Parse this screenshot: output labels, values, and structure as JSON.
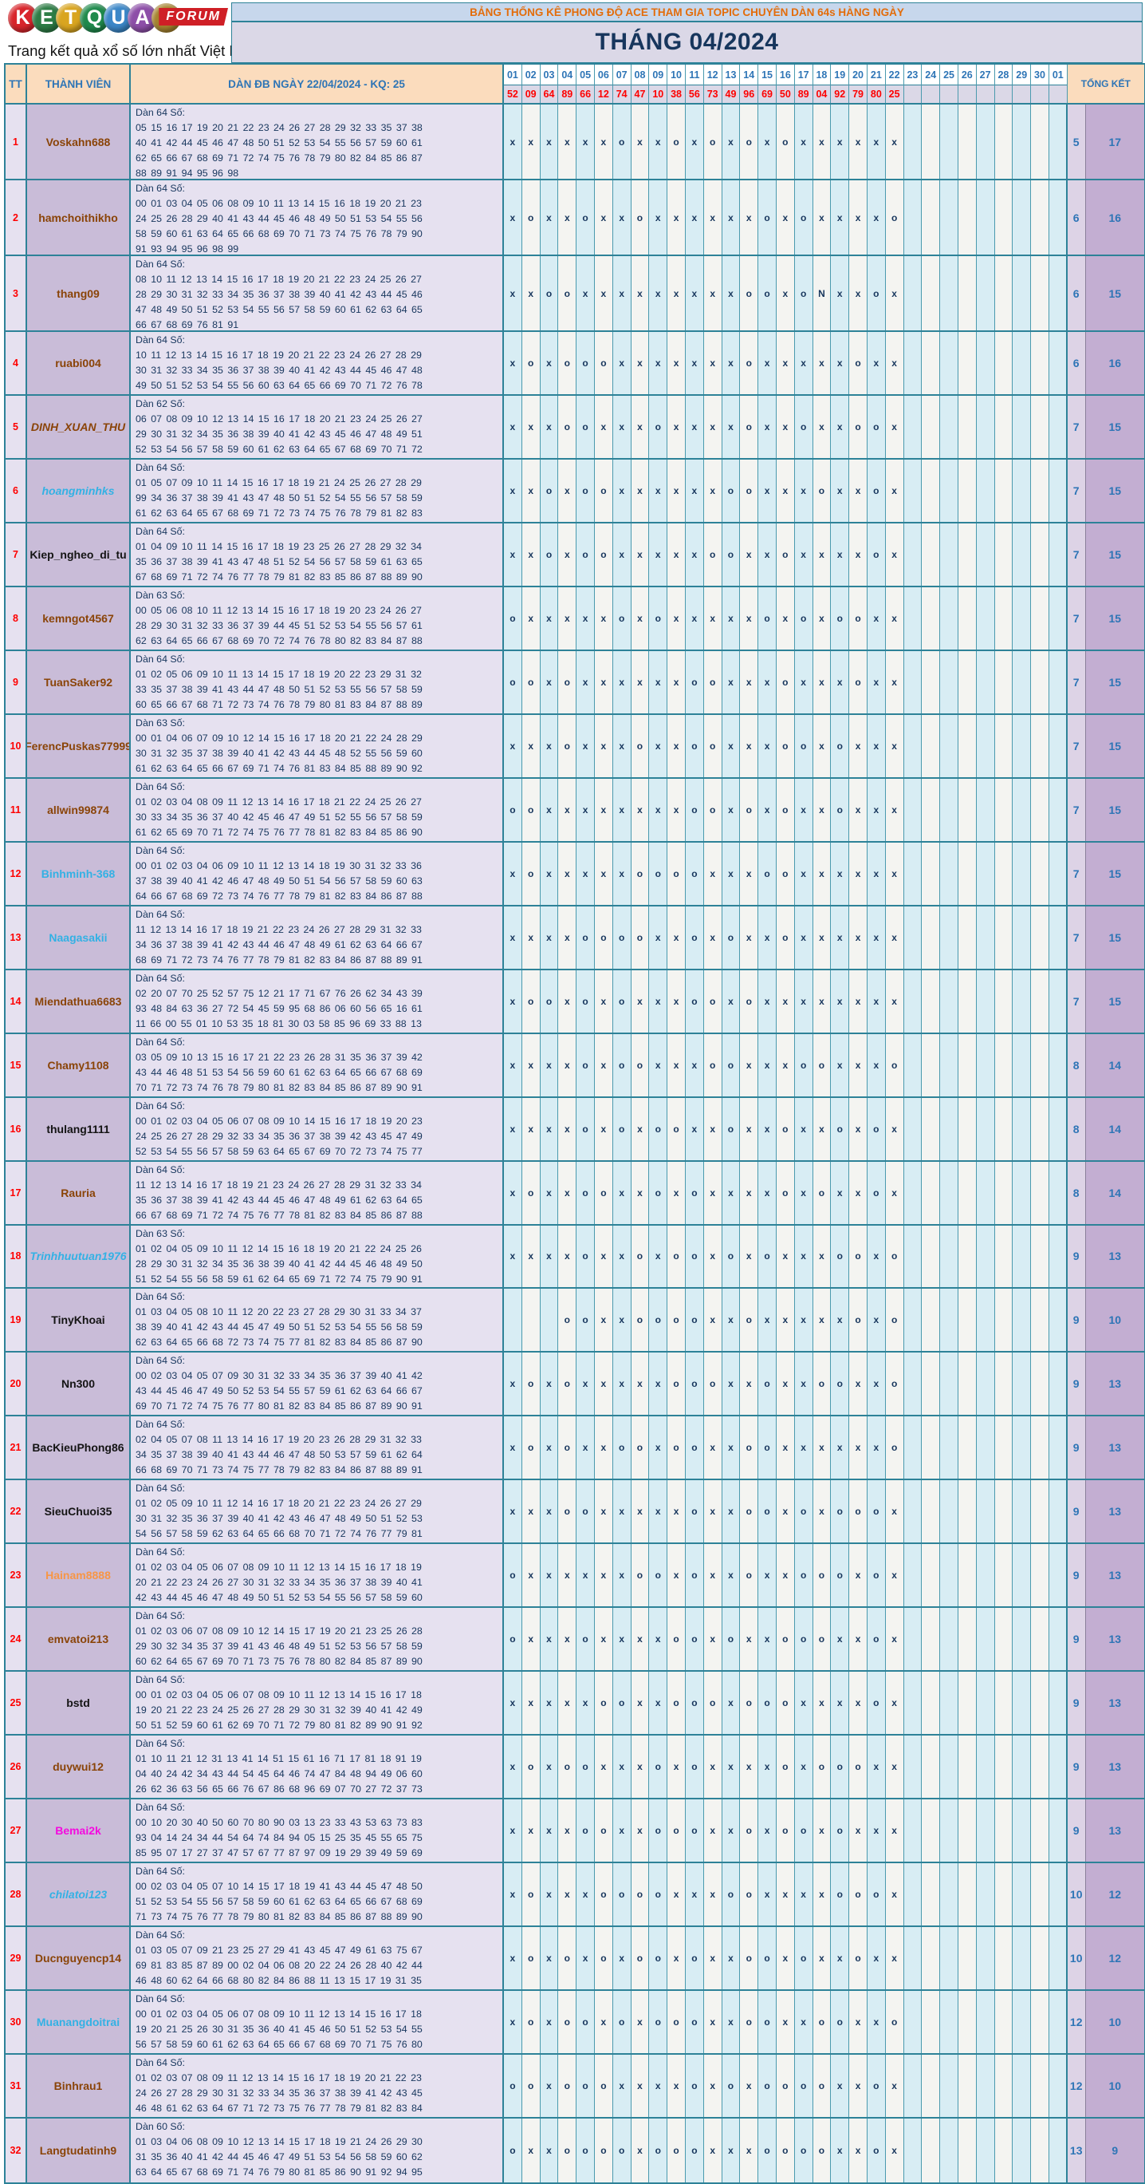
{
  "logo": {
    "letters": [
      "K",
      "E",
      "T",
      "Q",
      "U",
      "A",
      "2"
    ],
    "letter_colors": [
      "#d8252b",
      "#2e7d46",
      "#d9a520",
      "#1f8a4c",
      "#3b87c8",
      "#8d4fa8",
      "#a5822e"
    ],
    "forum_badge": "FORUM",
    "tagline": "Trang kết quả xổ số lớn nhất Việt Nam"
  },
  "header": {
    "title": "BẢNG THỐNG KÊ PHONG ĐỘ ACE THAM GIA TOPIC CHUYÊN DÀN 64s HÀNG NGÀY",
    "month": "THÁNG 04/2024"
  },
  "table": {
    "col_tt": "TT",
    "col_member": "THÀNH VIÊN",
    "col_dan": "DÀN ĐB NGÀY 22/04/2024 - KQ: 25",
    "col_total": "TỔNG KẾT",
    "days": [
      "01",
      "02",
      "03",
      "04",
      "05",
      "06",
      "07",
      "08",
      "09",
      "10",
      "11",
      "12",
      "13",
      "14",
      "15",
      "16",
      "17",
      "18",
      "19",
      "20",
      "21",
      "22",
      "23",
      "24",
      "25",
      "26",
      "27",
      "28",
      "29",
      "30",
      "01"
    ],
    "results": [
      "52",
      "09",
      "64",
      "89",
      "66",
      "12",
      "74",
      "47",
      "10",
      "38",
      "56",
      "73",
      "49",
      "96",
      "69",
      "50",
      "89",
      "04",
      "92",
      "79",
      "80",
      "25",
      "",
      "",
      "",
      "",
      "",
      "",
      "",
      "",
      ""
    ],
    "rows": [
      {
        "tt": "1",
        "name": "Voskahn688",
        "color": "brown",
        "italic": false,
        "dan": "Dàn 64 Số:",
        "nums": "05 15 16 17 19 20 21 22 23 24 26 27 28 29 32 33 35 37 38 40 41 42 44 45 46 47 48 50 51 52 53 54 55 56 57 59 60 61 62 65 66 67 68 69 71 72 74 75 76 78 79 80 82 84 85 86 87 88 89 91 94 95 96 98",
        "marks": "xxxxxxoxxoxoxoxoxxxxxx",
        "total_o": "5",
        "total_x": "17"
      },
      {
        "tt": "2",
        "name": "hamchoithikho",
        "color": "brown",
        "italic": false,
        "dan": "Dàn 64 Số:",
        "nums": "00 01 03 04 05 06 08 09 10 11 13 14 15 16 18 19 20 21 23 24 25 26 28 29 40 41 43 44 45 46 48 49 50 51 53 54 55 56 58 59 60 61 63 64 65 66 68 69 70 71 73 74 75 76 78 79 90 91 93 94 95 96 98 99",
        "marks": "xoxxoxxoxxxxxxoxoxxxxo",
        "total_o": "6",
        "total_x": "16"
      },
      {
        "tt": "3",
        "name": "thang09",
        "color": "brown",
        "italic": false,
        "dan": "Dàn 64 Số:",
        "nums": "08 10 11 12 13 14 15 16 17 18 19 20 21 22 23 24 25 26 27 28 29 30 31 32 33 34 35 36 37 38 39 40 41 42 43 44 45 46 47 48 49 50 51 52 53 54 55 56 57 58 59 60 61 62 63 64 65 66 67 68 69 76 81 91",
        "marks": "xxooxxxxxxxxxooxoNxxox",
        "total_o": "6",
        "total_x": "15"
      },
      {
        "tt": "4",
        "name": "ruabi004",
        "color": "brown",
        "italic": false,
        "dan": "Dàn 64 Số:",
        "nums": "10 11 12 13 14 15 16 17 18 19 20 21 22 23 24 26 27 28 29 30 31 32 33 34 35 36 37 38 39 40 41 42 43 44 45 46 47 48 49 50 51 52 53 54 55 56 60 63 64 65 66 69 70 71 72 76 78",
        "marks": "xoxoooxxxxxxxoxxxxxoxx",
        "total_o": "6",
        "total_x": "16"
      },
      {
        "tt": "5",
        "name": "DINH_XUAN_THU",
        "color": "brown",
        "italic": true,
        "dan": "Dàn 62 Số:",
        "nums": "06 07 08 09 10 12 13 14 15 16 17 18 20 21 23 24 25 26 27 29 30 31 32 34 35 36 38 39 40 41 42 43 45 46 47 48 49 51 52 53 54 56 57 58 59 60 61 62 63 64 65 67 68 69 70 71 72",
        "marks": "xxxooxxxoxxxxoxxoxxoox",
        "total_o": "7",
        "total_x": "15"
      },
      {
        "tt": "6",
        "name": "hoangminhks",
        "color": "blue",
        "italic": true,
        "dan": "Dàn 64 Số:",
        "nums": "01 05 07 09 10 11 14 15 16 17 18 19 21 24 25 26 27 28 29 99 34 36 37 38 39 41 43 47 48 50 51 52 54 55 56 57 58 59 61 62 63 64 65 67 68 69 71 72 73 74 75 76 78 79 81 82 83",
        "marks": "xxoxooxxxxxxooxxxoxxox",
        "total_o": "7",
        "total_x": "15"
      },
      {
        "tt": "7",
        "name": "Kiep_ngheo_di_tu",
        "color": "black",
        "italic": false,
        "dan": "Dàn 64 Số:",
        "nums": "01 04 09 10 11 14 15 16 17 18 19 23 25 26 27 28 29 32 34 35 36 37 38 39 41 43 47 48 51 52 54 56 57 58 59 61 63 65 67 68 69 71 72 74 76 77 78 79 81 82 83 85 86 87 88 89 90",
        "marks": "xxoxooxxxxxooxxoxxxxox",
        "total_o": "7",
        "total_x": "15"
      },
      {
        "tt": "8",
        "name": "kemngot4567",
        "color": "brown",
        "italic": false,
        "dan": "Dàn 63 Số:",
        "nums": "00 05 06 08 10 11 12 13 14 15 16 17 18 19 20 23 24 26 27 28 29 30 31 32 33 36 37 39 44 45 51 52 53 54 55 56 57 61 62 63 64 65 66 67 68 69 70 72 74 76 78 80 82 83 84 87 88",
        "marks": "oxxxxxoxoxxxxxoxoxooxx",
        "total_o": "7",
        "total_x": "15"
      },
      {
        "tt": "9",
        "name": "TuanSaker92",
        "color": "brown",
        "italic": false,
        "dan": "Dàn 64 Số:",
        "nums": "01 02 05 06 09 10 11 13 14 15 17 18 19 20 22 23 29 31 32 33 35 37 38 39 41 43 44 47 48 50 51 52 53 55 56 57 58 59 60 65 66 67 68 71 72 73 74 76 78 79 80 81 83 84 87 88 89",
        "marks": "ooxoxxxxxxooxxxoxxxoxx",
        "total_o": "7",
        "total_x": "15"
      },
      {
        "tt": "10",
        "name": "FerencPuskas77999",
        "color": "brown",
        "italic": false,
        "dan": "Dàn 63 Số:",
        "nums": "00 01 04 06 07 09 10 12 14 15 16 17 18 20 21 22 24 28 29 30 31 32 35 37 38 39 40 41 42 43 44 45 48 52 55 56 59 60 61 62 63 64 65 66 67 69 71 74 76 81 83 84 85 88 89 90 92",
        "marks": "xxxoxxxoxxooxxxooxoxxx",
        "total_o": "7",
        "total_x": "15"
      },
      {
        "tt": "11",
        "name": "allwin99874",
        "color": "brown",
        "italic": false,
        "dan": "Dàn 64 Số:",
        "nums": "01 02 03 04 08 09 11 12 13 14 16 17 18 21 22 24 25 26 27 30 33 34 35 36 37 40 42 45 46 47 49 51 52 55 56 57 58 59 61 62 65 69 70 71 72 74 75 76 77 78 81 82 83 84 85 86 90",
        "marks": "ooxxxxxxxxooxoxoxxoxxx",
        "total_o": "7",
        "total_x": "15"
      },
      {
        "tt": "12",
        "name": "Binhminh-368",
        "color": "blue",
        "italic": false,
        "dan": "Dàn 64 Số:",
        "nums": "00 01 02 03 04 06 09 10 11 12 13 14 18 19 30 31 32 33 36 37 38 39 40 41 42 46 47 48 49 50 51 54 56 57 58 59 60 63 64 66 67 68 69 72 73 74 76 77 78 79 81 82 83 84 86 87 88",
        "marks": "xoxxxxxooooxxxooxxxxxx",
        "total_o": "7",
        "total_x": "15"
      },
      {
        "tt": "13",
        "name": "Naagasakii",
        "color": "blue",
        "italic": false,
        "dan": "Dàn 64 Số:",
        "nums": "11 12 13 14 16 17 18 19 21 22 23 24 26 27 28 29 31 32 33 34 36 37 38 39 41 42 43 44 46 47 48 49 61 62 63 64 66 67 68 69 71 72 73 74 76 77 78 79 81 82 83 84 86 87 88 89 91",
        "marks": "xxxxooooxxoxoxxoxxxxxx",
        "total_o": "7",
        "total_x": "15"
      },
      {
        "tt": "14",
        "name": "Miendathua6683",
        "color": "brown",
        "italic": false,
        "dan": "Dàn 64 Số:",
        "nums": "02 20 07 70 25 52 57 75 12 21 17 71 67 76 26 62 34 43 39 93 48 84 63 36 27 72 54 45 59 95 68 86 06 60 56 65 16 61 11 66 00 55 01 10 53 35 18 81 30 03 58 85 96 69 33 88 13",
        "marks": "xooxoxoxxxooxoxxxxxxxx",
        "total_o": "7",
        "total_x": "15"
      },
      {
        "tt": "15",
        "name": "Chamy1108",
        "color": "brown",
        "italic": false,
        "dan": "Dàn 64 Số:",
        "nums": "03 05 09 10 13 15 16 17 21 22 23 26 28 31 35 36 37 39 42 43 44 46 48 51 53 54 56 59 60 61 62 63 64 65 66 67 68 69 70 71 72 73 74 76 78 79 80 81 82 83 84 85 86 87 89 90 91",
        "marks": "xxxxoxooxxxooxxxooxxxo",
        "total_o": "8",
        "total_x": "14"
      },
      {
        "tt": "16",
        "name": "thulang1111",
        "color": "black",
        "italic": false,
        "dan": "Dàn 64 Số:",
        "nums": "00 01 02 03 04 05 06 07 08 09 10 14 15 16 17 18 19 20 23 24 25 26 27 28 29 32 33 34 35 36 37 38 39 42 43 45 47 49 52 53 54 55 56 57 58 59 63 64 65 67 69 70 72 73 74 75 77",
        "marks": "xxxxoxoxooxxoxxoxxoxox",
        "total_o": "8",
        "total_x": "14"
      },
      {
        "tt": "17",
        "name": "Rauria",
        "color": "brown",
        "italic": false,
        "dan": "Dàn 64 Số:",
        "nums": "11 12 13 14 16 17 18 19 21 23 24 26 27 28 29 31 32 33 34 35 36 37 38 39 41 42 43 44 45 46 47 48 49 61 62 63 64 65 66 67 68 69 71 72 74 75 76 77 78 81 82 83 84 85 86 87 88",
        "marks": "xoxxooxxoxoxxxxoxoxxox",
        "total_o": "8",
        "total_x": "14"
      },
      {
        "tt": "18",
        "name": "Trinhhuutuan1976",
        "color": "blue",
        "italic": true,
        "dan": "Dàn 63 Số:",
        "nums": "01 02 04 05 09 10 11 12 14 15 16 18 19 20 21 22 24 25 26 28 29 30 31 32 34 35 36 38 39 40 41 42 44 45 46 48 49 50 51 52 54 55 56 58 59 61 62 64 65 69 71 72 74 75 79 90 91",
        "marks": "xxxxoxxoxooxoxoxxxooxo",
        "total_o": "9",
        "total_x": "13"
      },
      {
        "tt": "19",
        "name": "TinyKhoai",
        "color": "black",
        "italic": false,
        "dan": "Dàn 64 Số:",
        "nums": "01 03 04 05 08 10 11 12 20 22 23 27 28 29 30 31 33 34 37 38 39 40 41 42 43 44 45 47 49 50 51 52 53 54 55 56 58 59 62 63 64 65 66 68 72 73 74 75 77 81 82 83 84 85 86 87 90",
        "marks": "...ooxxooooxxoxxxxxoxo",
        "total_o": "9",
        "total_x": "10"
      },
      {
        "tt": "20",
        "name": "Nn300",
        "color": "black",
        "italic": false,
        "dan": "Dàn 64 Số:",
        "nums": "00 02 03 04 05 07 09 30 31 32 33 34 35 36 37 39 40 41 42 43 44 45 46 47 49 50 52 53 54 55 57 59 61 62 63 64 66 67 69 70 71 72 74 75 76 77 80 81 82 83 84 85 86 87 89 90 91",
        "marks": "xoxoxxxxxoooxxoxxooxxo",
        "total_o": "9",
        "total_x": "13"
      },
      {
        "tt": "21",
        "name": "BacKieuPhong86",
        "color": "black",
        "italic": false,
        "dan": "Dàn 64 Số:",
        "nums": "02 04 05 07 08 11 13 14 16 17 19 20 23 26 28 29 31 32 33 34 35 37 38 39 40 41 43 44 46 47 48 50 53 57 59 61 62 64 66 68 69 70 71 73 74 75 77 78 79 82 83 84 86 87 88 89 91",
        "marks": "xoxoxxooxooxxooxxxxxxo",
        "total_o": "9",
        "total_x": "13"
      },
      {
        "tt": "22",
        "name": "SieuChuoi35",
        "color": "black",
        "italic": false,
        "dan": "Dàn 64 Số:",
        "nums": "01 02 05 09 10 11 12 14 16 17 18 20 21 22 23 24 26 27 29 30 31 32 35 36 37 39 40 41 42 43 46 47 48 49 50 51 52 53 54 56 57 58 59 62 63 64 65 66 68 70 71 72 74 76 77 79 81",
        "marks": "xxxooxxxxxoxxooxoxooox",
        "total_o": "9",
        "total_x": "13"
      },
      {
        "tt": "23",
        "name": "Hainam8888",
        "color": "orange",
        "italic": false,
        "dan": "Dàn 64 Số:",
        "nums": "01 02 03 04 05 06 07 08 09 10 11 12 13 14 15 16 17 18 19 20 21 22 23 24 26 27 30 31 32 33 34 35 36 37 38 39 40 41 42 43 44 45 46 47 48 49 50 51 52 53 54 55 56 57 58 59 60",
        "marks": "oxxxxxxooxoxxoxxoooxox",
        "total_o": "9",
        "total_x": "13"
      },
      {
        "tt": "24",
        "name": "emvatoi213",
        "color": "brown",
        "italic": false,
        "dan": "Dàn 64 Số:",
        "nums": "01 02 03 06 07 08 09 10 12 14 15 17 19 20 21 23 25 26 28 29 30 32 34 35 37 39 41 43 46 48 49 51 52 53 56 57 58 59 60 62 64 65 67 69 70 71 73 75 76 78 80 82 84 85 87 89 90",
        "marks": "oxxxoxxxxooxoxxoooxxox",
        "total_o": "9",
        "total_x": "13"
      },
      {
        "tt": "25",
        "name": "bstd",
        "color": "black",
        "italic": false,
        "dan": "Dàn 64 Số:",
        "nums": "00 01 02 03 04 05 06 07 08 09 10 11 12 13 14 15 16 17 18 19 20 21 22 23 24 25 26 27 28 29 30 31 32 39 40 41 42 49 50 51 52 59 60 61 62 69 70 71 72 79 80 81 82 89 90 91 92",
        "marks": "xxxxxooxxoooxoooxxxxox",
        "total_o": "9",
        "total_x": "13"
      },
      {
        "tt": "26",
        "name": "duywui12",
        "color": "brown",
        "italic": false,
        "dan": "Dàn 64 Số:",
        "nums": "01 10 11 21 12 31 13 41 14 51 15 61 16 71 17 81 18 91 19 04 40 24 42 34 43 44 54 45 64 46 74 47 84 48 94 49 06 60 26 62 36 63 56 65 66 76 67 86 68 96 69 07 70 27 72 37 73",
        "marks": "xoxooxxxoxoxxxxoxoooxx",
        "total_o": "9",
        "total_x": "13"
      },
      {
        "tt": "27",
        "name": "Bemai2k",
        "color": "magenta",
        "italic": false,
        "dan": "Dàn 64 Số:",
        "nums": "00 10 20 30 40 50 60 70 80 90 03 13 23 33 43 53 63 73 83 93 04 14 24 34 44 54 64 74 84 94 05 15 25 35 45 55 65 75 85 95 07 17 27 37 47 57 67 77 87 97 09 19 29 39 49 59 69",
        "marks": "xxxxooxxoooxxoxooxoxxx",
        "total_o": "9",
        "total_x": "13"
      },
      {
        "tt": "28",
        "name": "chilatoi123",
        "color": "blue",
        "italic": true,
        "dan": "Dàn 64 Số:",
        "nums": "00 02 03 04 05 07 10 14 15 17 18 19 41 43 44 45 47 48 50 51 52 53 54 55 56 57 58 59 60 61 62 63 64 65 66 67 68 69 71 73 74 75 76 77 78 79 80 81 82 83 84 85 86 87 88 89 90",
        "marks": "xoxxxooooxxxooxxxxooox",
        "total_o": "10",
        "total_x": "12"
      },
      {
        "tt": "29",
        "name": "Ducnguyencp14",
        "color": "brown",
        "italic": false,
        "dan": "Dàn 64 Số:",
        "nums": "01 03 05 07 09 21 23 25 27 29 41 43 45 47 49 61 63 75 67 69 81 83 85 87 89 00 02 04 06 08 20 22 24 26 28 40 42 44 46 48 60 62 64 66 68 80 82 84 86 88 11 13 15 17 19 31 35",
        "marks": "xoxoxoxooxoxxooxoxxoxx",
        "total_o": "10",
        "total_x": "12"
      },
      {
        "tt": "30",
        "name": "Muanangdoitrai",
        "color": "blue",
        "italic": false,
        "dan": "Dàn 64 Số:",
        "nums": "00 01 02 03 04 05 06 07 08 09 10 11 12 13 14 15 16 17 18 19 20 21 25 26 30 31 35 36 40 41 45 46 50 51 52 53 54 55 56 57 58 59 60 61 62 63 64 65 66 67 68 69 70 71 75 76 80",
        "marks": "xoxooxoxoooxxooxxooxxo",
        "total_o": "12",
        "total_x": "10"
      },
      {
        "tt": "31",
        "name": "Binhrau1",
        "color": "brown",
        "italic": false,
        "dan": "Dàn 64 Số:",
        "nums": "01 02 03 07 08 09 11 12 13 14 15 16 17 18 19 20 21 22 23 24 26 27 28 29 30 31 32 33 34 35 36 37 38 39 41 42 43 45 46 48 61 62 63 64 67 71 72 73 75 76 77 78 79 81 82 83 84",
        "marks": "ooxoooxxxxoxoxooooxxox",
        "total_o": "12",
        "total_x": "10"
      },
      {
        "tt": "32",
        "name": "Langtudatinh9",
        "color": "brown",
        "italic": false,
        "dan": "Dàn 60 Số:",
        "nums": "01 03 04 06 08 09 10 12 13 14 15 17 18 19 21 24 26 29 30 31 35 36 40 41 42 44 45 46 47 49 51 53 54 56 58 59 60 62 63 64 65 67 68 69 71 74 76 79 80 81 85 86 90 91 92 94 95",
        "marks": "oxxooooxoooxxxooooxxox",
        "total_o": "13",
        "total_x": "9"
      }
    ]
  },
  "colors": {
    "accent_teal": "#2d8298",
    "header_peach": "#fbdcbd",
    "header_blue_text": "#2e75b6",
    "title_orange": "#e36c0a",
    "month_navy": "#17365d",
    "result_red": "#fe0000",
    "mark_navy": "#17365d",
    "name_cell": "#c9bcd8",
    "nums_cell": "#e6e1f0",
    "mark_cyan": "#d8edf4",
    "total_o_cell": "#ddd3e6",
    "total_x_cell": "#c3aed2"
  }
}
